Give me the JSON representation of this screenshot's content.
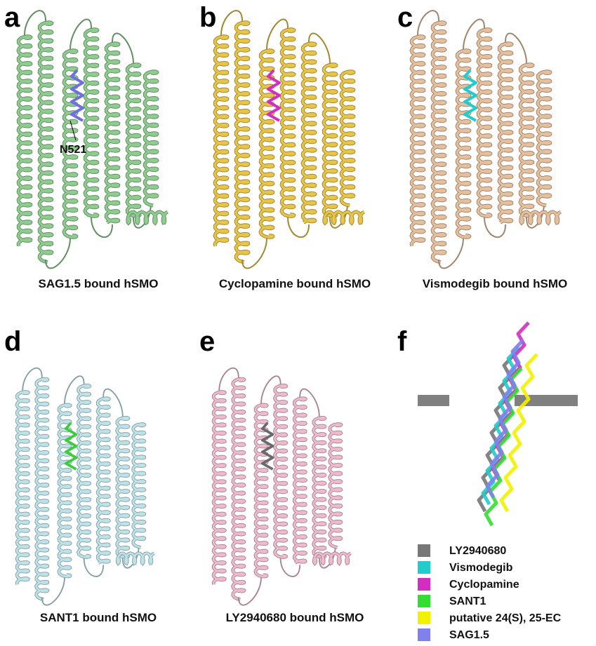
{
  "panels": [
    {
      "letter": "a",
      "caption": "SAG1.5 bound hSMO",
      "annotation": "N521",
      "color": "#8fcc8f",
      "ligand_color": "#6f6fe0"
    },
    {
      "letter": "b",
      "caption": "Cyclopamine bound hSMO",
      "color": "#e8c447",
      "ligand_color": "#d22fc0"
    },
    {
      "letter": "c",
      "caption": "Vismodegib bound hSMO",
      "color": "#e6c09c",
      "ligand_color": "#22cccc"
    },
    {
      "letter": "d",
      "caption": "SANT1 bound hSMO",
      "color": "#bde3e8",
      "ligand_color": "#3ccc3c"
    },
    {
      "letter": "e",
      "caption": "LY2940680 bound hSMO",
      "color": "#eebacd",
      "ligand_color": "#6a6a6a"
    },
    {
      "letter": "f"
    }
  ],
  "legend": [
    {
      "label": "LY2940680",
      "color": "#777777"
    },
    {
      "label": "Vismodegib",
      "color": "#22cccc"
    },
    {
      "label": "Cyclopamine",
      "color": "#d22fc0"
    },
    {
      "label": "SANT1",
      "color": "#33dd33"
    },
    {
      "label": "putative 24(S), 25-EC",
      "color": "#f2f200"
    },
    {
      "label": "SAG1.5",
      "color": "#8080ee"
    }
  ]
}
